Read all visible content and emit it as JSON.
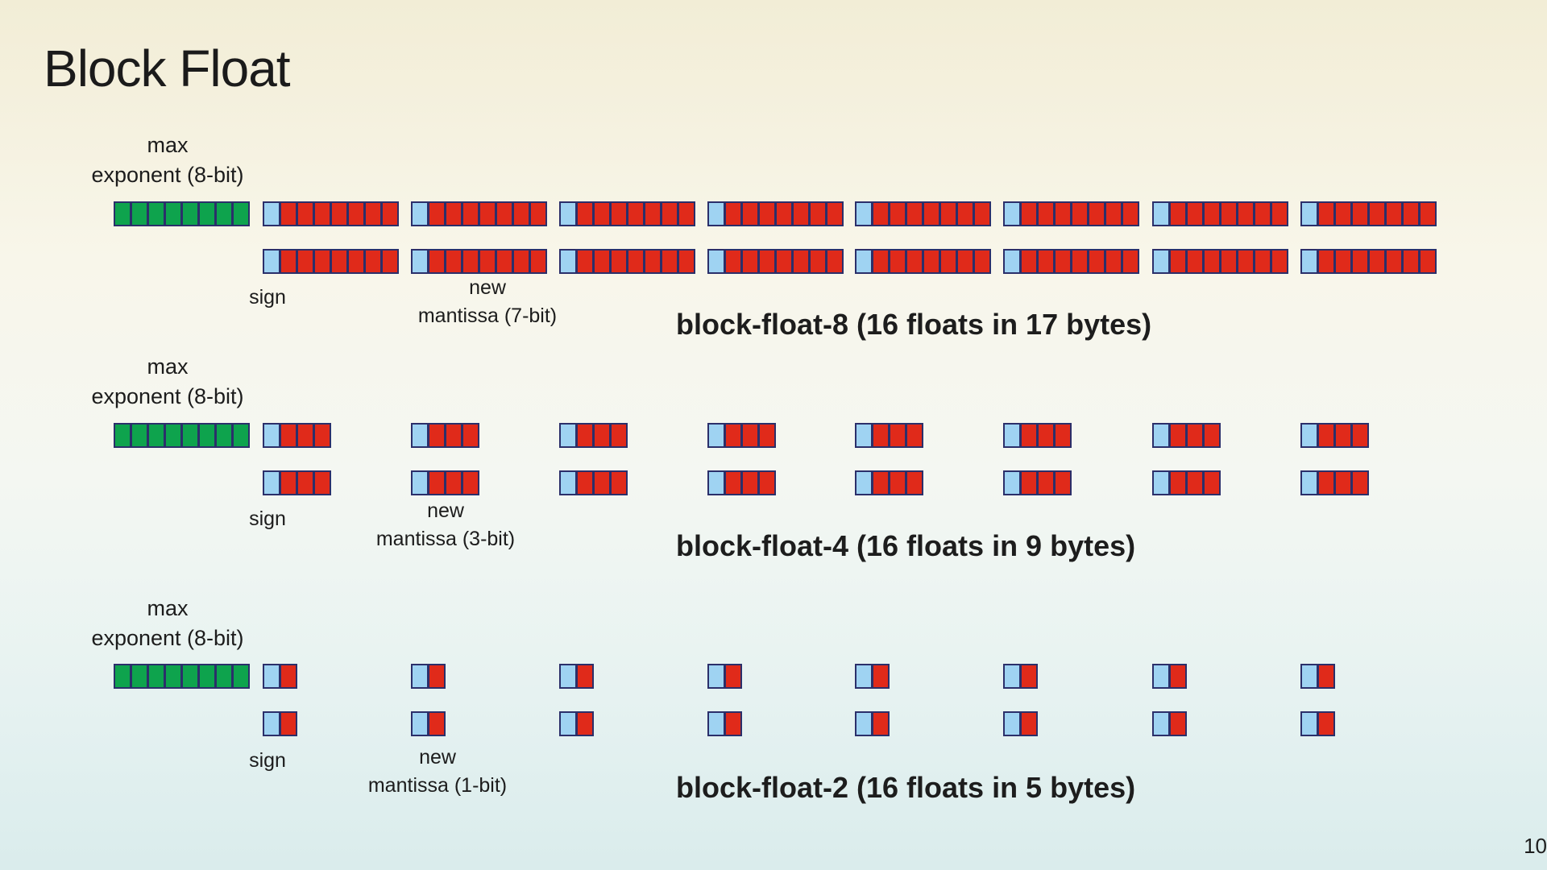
{
  "title": "Block Float",
  "page_number": "10",
  "colors": {
    "exponent": "#0ea34d",
    "sign": "#9fd3f2",
    "mantissa": "#e02a1a",
    "border": "#2b2f6a"
  },
  "sections": [
    {
      "exp_label_line1": "max",
      "exp_label_line2": "exponent (8-bit)",
      "sign_label": "sign",
      "mantissa_label_line1": "new",
      "mantissa_label_line2": "mantissa (7-bit)",
      "caption": "block-float-8 (16 floats in 17 bytes)",
      "exponent_bits": 8,
      "mantissa_bits": 7,
      "rows": 2,
      "floats_per_row": 8
    },
    {
      "exp_label_line1": "max",
      "exp_label_line2": "exponent (8-bit)",
      "sign_label": "sign",
      "mantissa_label_line1": "new",
      "mantissa_label_line2": "mantissa (3-bit)",
      "caption": "block-float-4 (16 floats in 9 bytes)",
      "exponent_bits": 8,
      "mantissa_bits": 3,
      "rows": 2,
      "floats_per_row": 8
    },
    {
      "exp_label_line1": "max",
      "exp_label_line2": "exponent (8-bit)",
      "sign_label": "sign",
      "mantissa_label_line1": "new",
      "mantissa_label_line2": "mantissa (1-bit)",
      "caption": "block-float-2 (16 floats in 5 bytes)",
      "exponent_bits": 8,
      "mantissa_bits": 1,
      "rows": 2,
      "floats_per_row": 8
    }
  ]
}
